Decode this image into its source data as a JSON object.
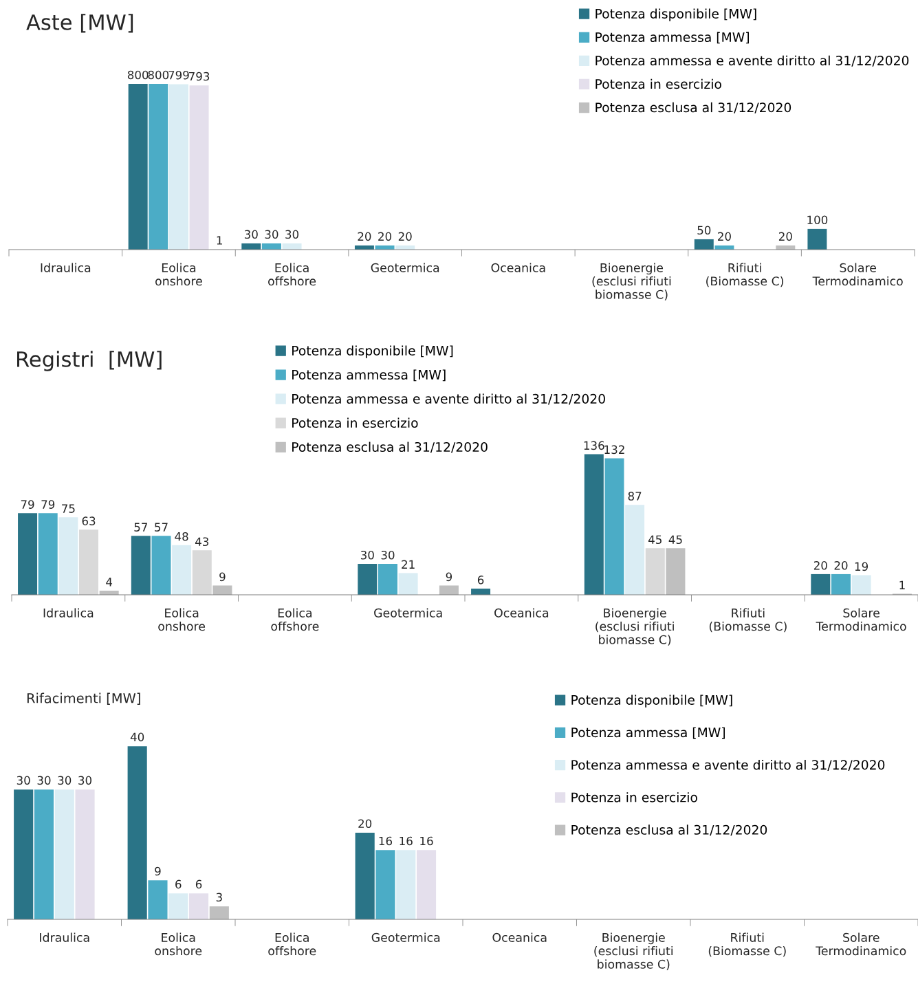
{
  "chart_data": [
    {
      "type": "bar",
      "title": "Aste [MW]",
      "categories": [
        "Idraulica",
        "Eolica\nonshore",
        "Eolica\noffshore",
        "Geotermica",
        "Oceanica",
        "Bioenergie\n(esclusi rifiuti\nbiomasse C)",
        "Rifiuti\n(Biomasse C)",
        "Solare\nTermodinamico"
      ],
      "series": [
        {
          "name": "Potenza disponibile [MW]",
          "color": "#2a7487",
          "values": [
            null,
            800,
            30,
            20,
            null,
            null,
            50,
            100
          ]
        },
        {
          "name": "Potenza ammessa [MW]",
          "color": "#4bacc6",
          "values": [
            null,
            800,
            30,
            20,
            null,
            null,
            20,
            null
          ]
        },
        {
          "name": "Potenza ammessa e avente diritto al 31/12/2020",
          "color": "#daedf4",
          "values": [
            null,
            799,
            30,
            20,
            null,
            null,
            null,
            null
          ]
        },
        {
          "name": "Potenza in esercizio",
          "color": "#e4dfec",
          "values": [
            null,
            793,
            null,
            null,
            null,
            null,
            null,
            null
          ]
        },
        {
          "name": "Potenza esclusa al 31/12/2020",
          "color": "#bfbfbf",
          "values": [
            null,
            1,
            null,
            null,
            null,
            null,
            20,
            null
          ]
        }
      ],
      "data_labels": true,
      "legend": "top right",
      "grid": false
    },
    {
      "type": "bar",
      "title": "Registri  [MW]",
      "categories": [
        "Idraulica",
        "Eolica\nonshore",
        "Eolica\noffshore",
        "Geotermica",
        "Oceanica",
        "Bioenergie\n(esclusi rifiuti\nbiomasse C)",
        "Rifiuti\n(Biomasse C)",
        "Solare\nTermodinamico"
      ],
      "series": [
        {
          "name": "Potenza disponibile [MW]",
          "color": "#2a7487",
          "values": [
            79,
            57,
            null,
            30,
            6,
            136,
            null,
            20
          ]
        },
        {
          "name": "Potenza ammessa [MW]",
          "color": "#4bacc6",
          "values": [
            79,
            57,
            null,
            30,
            null,
            132,
            null,
            20
          ]
        },
        {
          "name": "Potenza ammessa e avente diritto al 31/12/2020",
          "color": "#daedf4",
          "values": [
            75,
            48,
            null,
            21,
            null,
            87,
            null,
            19
          ]
        },
        {
          "name": "Potenza in esercizio",
          "color": "#d9d9d9",
          "values": [
            63,
            43,
            null,
            null,
            null,
            45,
            null,
            null
          ]
        },
        {
          "name": "Potenza esclusa al 31/12/2020",
          "color": "#bfbfbf",
          "values": [
            4,
            9,
            null,
            9,
            null,
            45,
            null,
            1
          ]
        }
      ],
      "data_labels": true,
      "legend": "top",
      "grid": false
    },
    {
      "type": "bar",
      "title": "Rifacimenti [MW]",
      "categories": [
        "Idraulica",
        "Eolica\nonshore",
        "Eolica\noffshore",
        "Geotermica",
        "Oceanica",
        "Bioenergie\n(esclusi rifiuti\nbiomasse C)",
        "Rifiuti\n(Biomasse C)",
        "Solare\nTermodinamico"
      ],
      "series": [
        {
          "name": "Potenza disponibile [MW]",
          "color": "#2a7487",
          "values": [
            30,
            40,
            null,
            20,
            null,
            null,
            null,
            null
          ]
        },
        {
          "name": "Potenza ammessa [MW]",
          "color": "#4bacc6",
          "values": [
            30,
            9,
            null,
            16,
            null,
            null,
            null,
            null
          ]
        },
        {
          "name": "Potenza ammessa e avente diritto al 31/12/2020",
          "color": "#daedf4",
          "values": [
            30,
            6,
            null,
            16,
            null,
            null,
            null,
            null
          ]
        },
        {
          "name": "Potenza in esercizio",
          "color": "#e4dfec",
          "values": [
            30,
            6,
            null,
            16,
            null,
            null,
            null,
            null
          ]
        },
        {
          "name": "Potenza esclusa al 31/12/2020",
          "color": "#bfbfbf",
          "values": [
            null,
            3,
            null,
            null,
            null,
            null,
            null,
            null
          ]
        }
      ],
      "data_labels": true,
      "legend": "top right",
      "grid": false
    }
  ]
}
